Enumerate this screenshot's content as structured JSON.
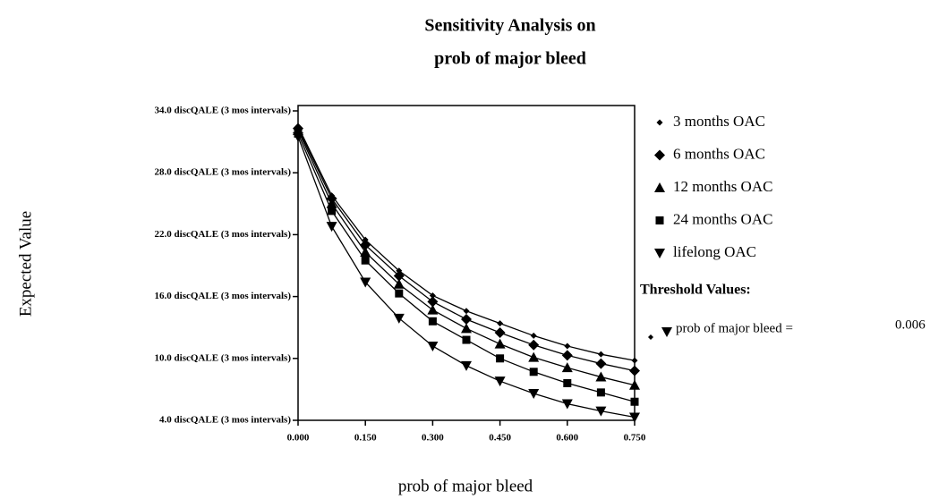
{
  "chart_data": {
    "type": "line",
    "title": [
      "Sensitivity Analysis on",
      "prob of major bleed"
    ],
    "xlabel": "prob of major bleed",
    "ylabel": "Expected Value",
    "x": [
      0,
      0.075,
      0.15,
      0.225,
      0.3,
      0.375,
      0.45,
      0.525,
      0.6,
      0.675,
      0.75
    ],
    "xlim": [
      0,
      0.75
    ],
    "xticks": [
      {
        "value": 0,
        "label": "0.000"
      },
      {
        "value": 0.15,
        "label": "0.150"
      },
      {
        "value": 0.3,
        "label": "0.300"
      },
      {
        "value": 0.45,
        "label": "0.450"
      },
      {
        "value": 0.6,
        "label": "0.600"
      },
      {
        "value": 0.75,
        "label": "0.750"
      }
    ],
    "ylim": [
      4,
      34
    ],
    "yticks": [
      {
        "value": 4,
        "label": "4.0 discQALE (3 mos intervals)"
      },
      {
        "value": 10,
        "label": "10.0 discQALE (3 mos intervals)"
      },
      {
        "value": 16,
        "label": "16.0 discQALE (3 mos intervals)"
      },
      {
        "value": 22,
        "label": "22.0 discQALE (3 mos intervals)"
      },
      {
        "value": 28,
        "label": "28.0 discQALE (3 mos intervals)"
      },
      {
        "value": 34,
        "label": "34.0 discQALE (3 mos intervals)"
      }
    ],
    "series": [
      {
        "name": "3 months OAC",
        "color": "#000000",
        "marker": "small-diamond",
        "values": [
          32.5,
          25.8,
          21.5,
          18.5,
          16.1,
          14.6,
          13.4,
          12.2,
          11.2,
          10.4,
          9.8
        ]
      },
      {
        "name": "6 months OAC",
        "color": "#000000",
        "marker": "diamond",
        "values": [
          32.3,
          25.5,
          21.0,
          18.0,
          15.5,
          13.8,
          12.5,
          11.3,
          10.3,
          9.5,
          8.8
        ]
      },
      {
        "name": "12 months OAC",
        "color": "#000000",
        "marker": "triangle-up",
        "values": [
          32.1,
          25.0,
          20.3,
          17.2,
          14.7,
          12.9,
          11.4,
          10.1,
          9.1,
          8.2,
          7.4
        ]
      },
      {
        "name": "24 months OAC",
        "color": "#000000",
        "marker": "square",
        "values": [
          31.8,
          24.3,
          19.5,
          16.3,
          13.6,
          11.8,
          10.0,
          8.7,
          7.6,
          6.7,
          5.8
        ]
      },
      {
        "name": "lifelong OAC",
        "color": "#000000",
        "marker": "triangle-down",
        "values": [
          31.5,
          22.8,
          17.4,
          13.9,
          11.2,
          9.3,
          7.8,
          6.6,
          5.6,
          4.9,
          4.3
        ]
      }
    ],
    "threshold": {
      "title": "Threshold Values:",
      "label": "prob of major bleed =",
      "value": "0.006"
    }
  }
}
